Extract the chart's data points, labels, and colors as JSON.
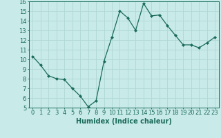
{
  "x": [
    0,
    1,
    2,
    3,
    4,
    5,
    6,
    7,
    8,
    9,
    10,
    11,
    12,
    13,
    14,
    15,
    16,
    17,
    18,
    19,
    20,
    21,
    22,
    23
  ],
  "y": [
    10.3,
    9.4,
    8.3,
    8.0,
    7.9,
    7.0,
    6.2,
    5.1,
    5.7,
    9.8,
    12.3,
    15.0,
    14.3,
    13.0,
    15.8,
    14.5,
    14.6,
    13.5,
    12.5,
    11.5,
    11.5,
    11.2,
    11.7,
    12.3
  ],
  "line_color": "#1a6b5a",
  "marker": "D",
  "marker_size": 2,
  "bg_color": "#c8eae8",
  "grid_color": "#b0d8d4",
  "xlabel": "Humidex (Indice chaleur)",
  "ylim": [
    5,
    16
  ],
  "xlim": [
    -0.5,
    23.5
  ],
  "yticks": [
    5,
    6,
    7,
    8,
    9,
    10,
    11,
    12,
    13,
    14,
    15,
    16
  ],
  "xticks": [
    0,
    1,
    2,
    3,
    4,
    5,
    6,
    7,
    8,
    9,
    10,
    11,
    12,
    13,
    14,
    15,
    16,
    17,
    18,
    19,
    20,
    21,
    22,
    23
  ],
  "tick_color": "#1a6b5a",
  "label_fontsize": 7,
  "tick_fontsize": 6,
  "linewidth": 0.9
}
